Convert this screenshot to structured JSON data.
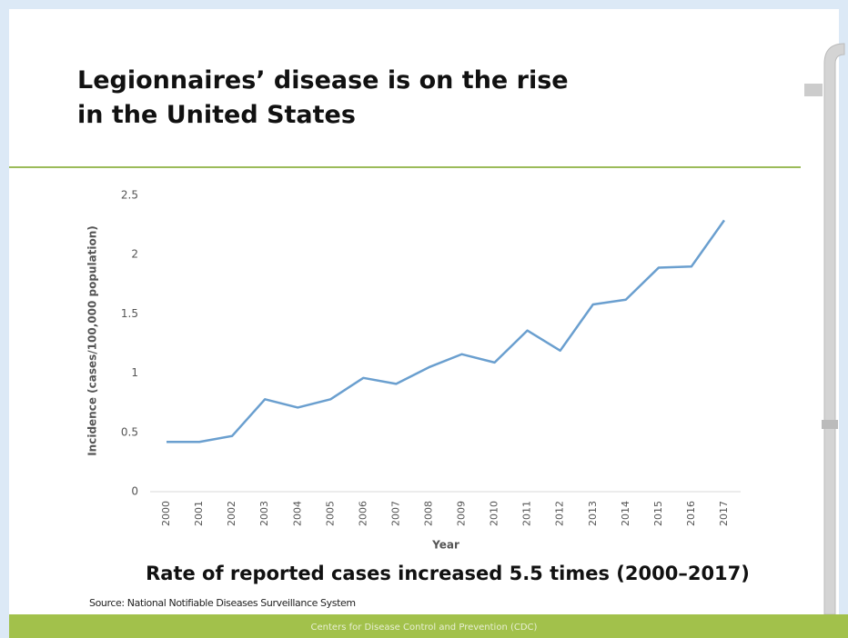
{
  "slide_title": "Legionnaires’ disease is on the rise in the United States",
  "headline": "Rate of reported cases increased 5.5 times (2000–2017)",
  "source": "Source: National Notifiable Diseases Surveillance System",
  "footer": "Centers for Disease Control and Prevention (CDC)",
  "chart_data": {
    "type": "line",
    "x_label": "Year",
    "y_label": "Incidence (cases/100,000 population)",
    "categories": [
      "2000",
      "2001",
      "2002",
      "2003",
      "2004",
      "2005",
      "2006",
      "2007",
      "2008",
      "2009",
      "2010",
      "2011",
      "2012",
      "2013",
      "2014",
      "2015",
      "2016",
      "2017"
    ],
    "series": [
      {
        "name": "Incidence",
        "color": "#6a9fcf",
        "values": [
          0.42,
          0.42,
          0.47,
          0.78,
          0.71,
          0.78,
          0.96,
          0.91,
          1.05,
          1.16,
          1.09,
          1.36,
          1.19,
          1.58,
          1.62,
          1.89,
          1.9,
          2.29
        ]
      }
    ],
    "ylim": [
      0,
      2.5
    ],
    "yticks": [
      0,
      0.5,
      1,
      1.5,
      2,
      2.5
    ],
    "grid": false
  }
}
